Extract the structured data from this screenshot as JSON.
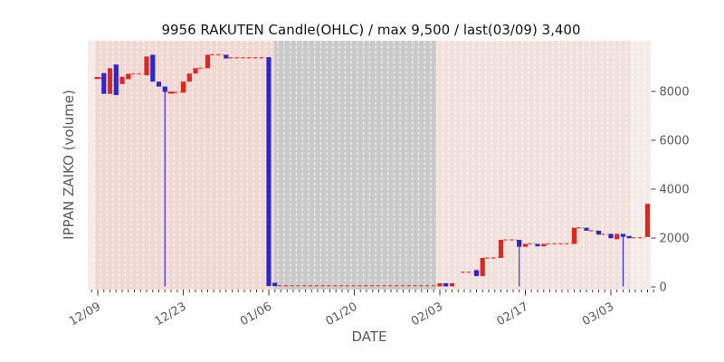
{
  "title": "9956 RAKUTEN Candle(OHLC) / max 9,500 / last(03/09) 3,400",
  "xlabel": "DATE",
  "ylabel": "IPPAN ZAIKO (volume)",
  "colors": {
    "up_candle": "#e8231a",
    "down_candle": "#2c26cf",
    "dash_line": "#f4463a",
    "wick": "#2c26cf",
    "plot_base": "#f5ece9",
    "grid_line": "rgba(255,255,255,0.75)",
    "tick": "#3c3c3c",
    "tick_label": "#595959",
    "title_text": "#141414"
  },
  "chart_data": {
    "type": "candlestick-ohlc",
    "title": "9956 RAKUTEN Candle(OHLC) / max 9,500 / last(03/09) 3,400",
    "xlabel": "DATE",
    "ylabel": "IPPAN ZAIKO (volume)",
    "max_value": 9500,
    "last": {
      "date": "03/09",
      "value": 3400
    },
    "y_ticks": [
      0,
      2000,
      4000,
      6000,
      8000
    ],
    "ylim": [
      -120,
      10075
    ],
    "x_ticks": [
      {
        "day": 0,
        "label": "12/09"
      },
      {
        "day": 14,
        "label": "12/23"
      },
      {
        "day": 28,
        "label": "01/06"
      },
      {
        "day": 42,
        "label": "01/20"
      },
      {
        "day": 56,
        "label": "02/03"
      },
      {
        "day": 70,
        "label": "02/17"
      },
      {
        "day": 84,
        "label": "03/03"
      }
    ],
    "day_range": [
      -1,
      90
    ],
    "legend": "none",
    "grid": "vertical-dashed-white-daily",
    "bands": [
      {
        "name": "period-pink-left",
        "from": -0.45,
        "to": 28.9,
        "color": "#f2d8d3"
      },
      {
        "name": "period-gray-gap",
        "from": 28.9,
        "to": 55.4,
        "color": "#cacaca"
      },
      {
        "name": "period-pink-right",
        "from": 55.4,
        "to": 87.2,
        "color": "#f1e1dc"
      }
    ],
    "candles": [
      {
        "day": 0,
        "date": "12/09",
        "dir": "flat",
        "top": 8550,
        "bottom": 8550
      },
      {
        "day": 1,
        "date": "12/10",
        "dir": "down",
        "top": 8750,
        "bottom": 7900
      },
      {
        "day": 2,
        "date": "12/11",
        "dir": "up",
        "top": 8950,
        "bottom": 7900
      },
      {
        "day": 3,
        "date": "12/12",
        "dir": "down",
        "top": 9100,
        "bottom": 7850
      },
      {
        "day": 4,
        "date": "12/13",
        "dir": "up",
        "top": 8600,
        "bottom": 8300
      },
      {
        "day": 5,
        "date": "12/14",
        "dir": "up",
        "top": 8720,
        "bottom": 8500
      },
      {
        "day": 8,
        "date": "12/17",
        "dir": "up",
        "top": 9430,
        "bottom": 8660
      },
      {
        "day": 9,
        "date": "12/18",
        "dir": "down",
        "top": 9500,
        "bottom": 8400
      },
      {
        "day": 10,
        "date": "12/19",
        "dir": "down",
        "top": 8400,
        "bottom": 8200
      },
      {
        "day": 11,
        "date": "12/20",
        "dir": "down",
        "top": 8200,
        "bottom": 7980,
        "wick_to_zero": true
      },
      {
        "day": 12,
        "date": "12/21",
        "dir": "flat",
        "top": 7950,
        "bottom": 7950
      },
      {
        "day": 14,
        "date": "12/23",
        "dir": "up",
        "top": 8400,
        "bottom": 7950
      },
      {
        "day": 15,
        "date": "12/24",
        "dir": "up",
        "top": 8730,
        "bottom": 8400
      },
      {
        "day": 16,
        "date": "12/25",
        "dir": "up",
        "top": 8950,
        "bottom": 8730
      },
      {
        "day": 18,
        "date": "12/27",
        "dir": "up",
        "top": 9500,
        "bottom": 8950
      },
      {
        "day": 21,
        "date": "12/30",
        "dir": "down",
        "top": 9500,
        "bottom": 9350
      },
      {
        "day": 28,
        "date": "01/06",
        "dir": "down",
        "top": 9400,
        "bottom": 30
      },
      {
        "day": 29,
        "date": "01/07",
        "dir": "down",
        "top": 170,
        "bottom": 30
      },
      {
        "day": 56,
        "date": "02/03",
        "dir": "up",
        "top": 150,
        "bottom": 20
      },
      {
        "day": 57,
        "date": "02/04",
        "dir": "down",
        "top": 150,
        "bottom": 20
      },
      {
        "day": 58,
        "date": "02/05",
        "dir": "up",
        "top": 150,
        "bottom": 20
      },
      {
        "day": 62,
        "date": "02/09",
        "dir": "down",
        "top": 690,
        "bottom": 440
      },
      {
        "day": 63,
        "date": "02/10",
        "dir": "up",
        "top": 1185,
        "bottom": 440
      },
      {
        "day": 66,
        "date": "02/13",
        "dir": "up",
        "top": 1925,
        "bottom": 1185
      },
      {
        "day": 69,
        "date": "02/16",
        "dir": "down",
        "top": 1925,
        "bottom": 1640,
        "wick_to_zero": true
      },
      {
        "day": 70,
        "date": "02/17",
        "dir": "up",
        "top": 1760,
        "bottom": 1640
      },
      {
        "day": 72,
        "date": "02/19",
        "dir": "down",
        "top": 1760,
        "bottom": 1660
      },
      {
        "day": 73,
        "date": "02/20",
        "dir": "up",
        "top": 1760,
        "bottom": 1660
      },
      {
        "day": 78,
        "date": "02/25",
        "dir": "up",
        "top": 2420,
        "bottom": 1760
      },
      {
        "day": 80,
        "date": "02/27",
        "dir": "down",
        "top": 2420,
        "bottom": 2300
      },
      {
        "day": 82,
        "date": "03/01",
        "dir": "down",
        "top": 2300,
        "bottom": 2140
      },
      {
        "day": 84,
        "date": "03/03",
        "dir": "down",
        "top": 2170,
        "bottom": 1990
      },
      {
        "day": 85,
        "date": "03/04",
        "dir": "up",
        "top": 2170,
        "bottom": 1950
      },
      {
        "day": 86,
        "date": "03/05",
        "dir": "down",
        "top": 2170,
        "bottom": 2050,
        "wick_to_zero": true
      },
      {
        "day": 87,
        "date": "03/06",
        "dir": "down",
        "top": 2085,
        "bottom": 1990
      },
      {
        "day": 90,
        "date": "03/09",
        "dir": "up",
        "top": 3400,
        "bottom": 2040
      }
    ],
    "flat_dashes": [
      {
        "from": 5,
        "to": 8,
        "v": 8720
      },
      {
        "from": 12,
        "to": 14,
        "v": 7950
      },
      {
        "from": 16,
        "to": 18,
        "v": 8950
      },
      {
        "from": 18,
        "to": 21,
        "v": 9500
      },
      {
        "from": 21,
        "to": 28,
        "v": 9380
      },
      {
        "from": 29,
        "to": 56,
        "v": 50
      },
      {
        "from": 59,
        "to": 62,
        "v": 600
      },
      {
        "from": 63,
        "to": 66,
        "v": 1185
      },
      {
        "from": 66,
        "to": 69,
        "v": 1925
      },
      {
        "from": 70,
        "to": 72,
        "v": 1760
      },
      {
        "from": 73,
        "to": 78,
        "v": 1760
      },
      {
        "from": 78,
        "to": 80,
        "v": 2420
      },
      {
        "from": 80,
        "to": 82,
        "v": 2300
      },
      {
        "from": 82,
        "to": 84,
        "v": 2150
      },
      {
        "from": 87,
        "to": 90,
        "v": 2010
      }
    ]
  }
}
